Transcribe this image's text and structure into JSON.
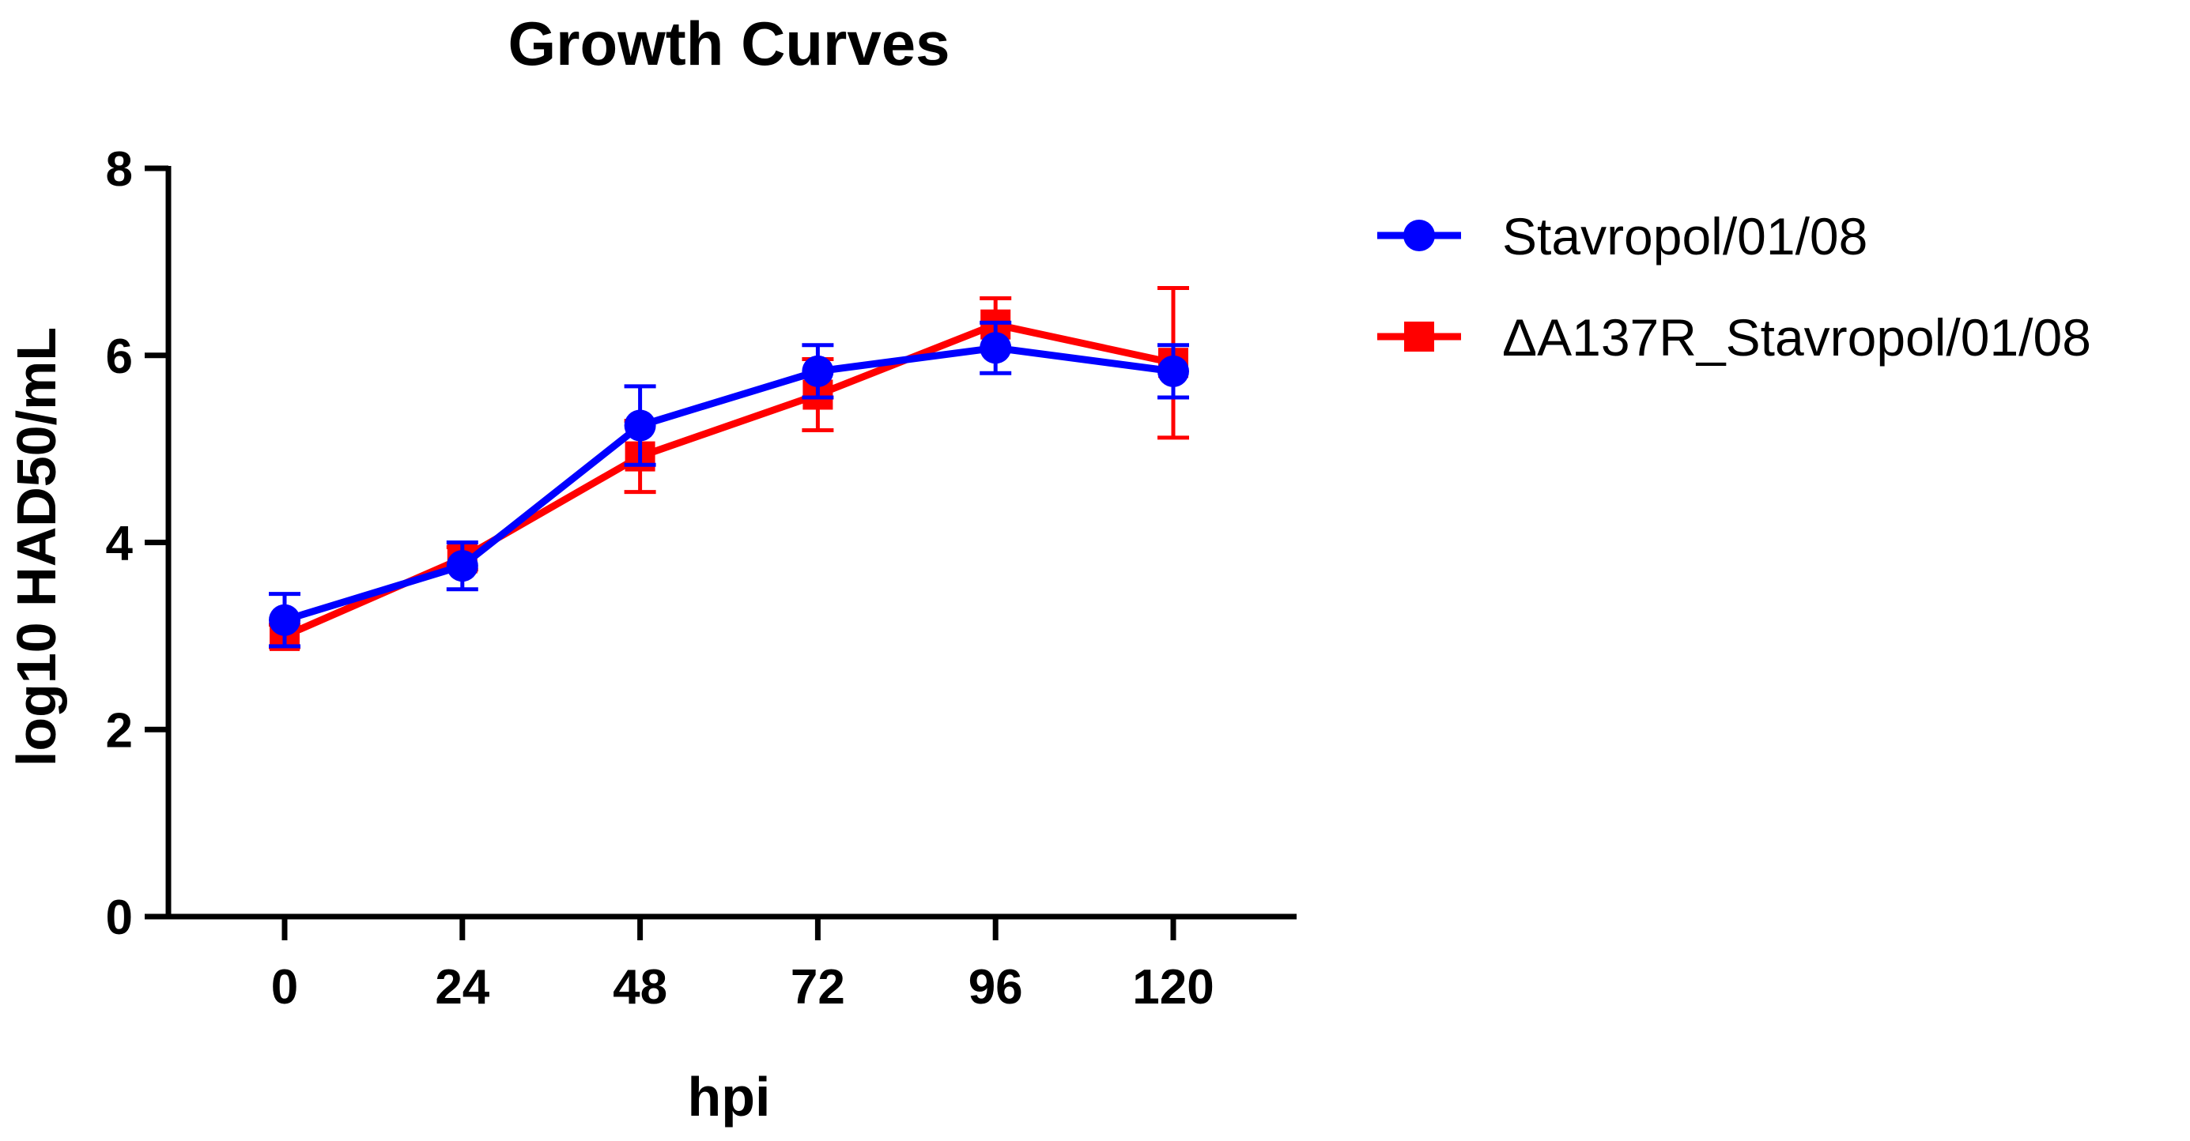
{
  "chart_data": {
    "type": "line",
    "title": "Growth Curves",
    "xlabel": "hpi",
    "ylabel": "log10 HAD50/mL",
    "x": [
      0,
      24,
      48,
      72,
      96,
      120
    ],
    "x_tick_labels": [
      "0",
      "24",
      "48",
      "72",
      "96",
      "120"
    ],
    "ylim": [
      0,
      8
    ],
    "y_ticks": [
      0,
      2,
      4,
      6,
      8
    ],
    "y_tick_labels": [
      "0",
      "2",
      "4",
      "6",
      "8"
    ],
    "legend_position": "right",
    "series": [
      {
        "name": "Stavropol/01/08",
        "color": "#0000ff",
        "marker": "circle",
        "values": [
          3.17,
          3.75,
          5.25,
          5.83,
          6.08,
          5.83
        ],
        "errors": [
          0.28,
          0.25,
          0.42,
          0.28,
          0.27,
          0.28
        ]
      },
      {
        "name": "ΔA137R_Stavropol/01/08",
        "color": "#ff0000",
        "marker": "square",
        "values": [
          3.0,
          3.83,
          4.92,
          5.58,
          6.33,
          5.92
        ],
        "errors": [
          0.12,
          0.12,
          0.38,
          0.38,
          0.28,
          0.8
        ]
      }
    ]
  }
}
